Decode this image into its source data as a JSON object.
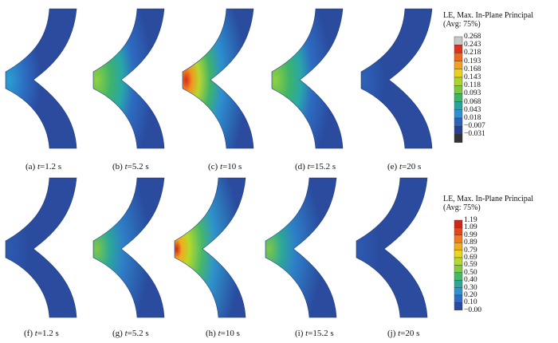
{
  "rows": [
    {
      "captions": [
        {
          "label": "(a)",
          "var": "t",
          "value": "=1.2 s"
        },
        {
          "label": "(b)",
          "var": "t",
          "value": "=5.2 s"
        },
        {
          "label": "(c)",
          "var": "t",
          "value": "=10 s"
        },
        {
          "label": "(d)",
          "var": "t",
          "value": "=15.2 s"
        },
        {
          "label": "(e)",
          "var": "t",
          "value": "=20 s"
        }
      ],
      "legend": {
        "title_line1": "LE, Max. In-Plane Principal",
        "title_line2": "(Avg: 75%)",
        "ticks": [
          "0.268",
          "0.243",
          "0.218",
          "0.193",
          "0.168",
          "0.143",
          "0.118",
          "0.093",
          "0.068",
          "0.043",
          "0.018",
          "−0.007",
          "−0.031"
        ],
        "colors": [
          "#c8c8c8",
          "#e0301e",
          "#ef6a1c",
          "#f2a31e",
          "#e8d21e",
          "#a9d62c",
          "#7cc846",
          "#3fb36a",
          "#2aa3a0",
          "#2f8fd0",
          "#2d62b8",
          "#27408f",
          "#333333"
        ]
      }
    },
    {
      "captions": [
        {
          "label": "(f)",
          "var": "t",
          "value": "=1.2 s"
        },
        {
          "label": "(g)",
          "var": "t",
          "value": "=5.2 s"
        },
        {
          "label": "(h)",
          "var": "t",
          "value": "=10 s"
        },
        {
          "label": "(i)",
          "var": "t",
          "value": "=15.2 s"
        },
        {
          "label": "(j)",
          "var": "t",
          "value": "=20 s"
        }
      ],
      "legend": {
        "title_line1": "LE, Max. In-Plane Principal",
        "title_line2": "(Avg: 75%)",
        "ticks": [
          "1.19",
          "1.09",
          "0.99",
          "0.89",
          "0.79",
          "0.69",
          "0.59",
          "0.50",
          "0.40",
          "0.30",
          "0.20",
          "0.10",
          "−0.00"
        ],
        "colors": [
          "#c8281e",
          "#e4461c",
          "#f07a1c",
          "#f3ab1e",
          "#e9d51e",
          "#b4d92c",
          "#82cb44",
          "#47b86a",
          "#2ba79a",
          "#2e93cc",
          "#2e6bc0",
          "#2a4aa0"
        ]
      }
    }
  ]
}
